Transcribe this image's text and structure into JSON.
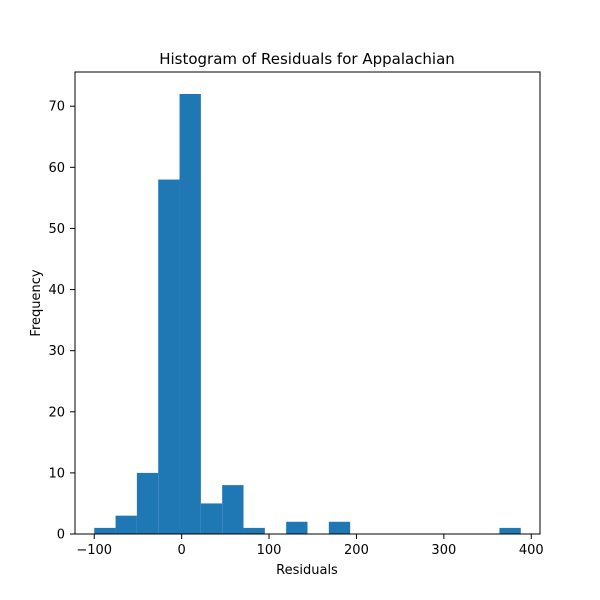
{
  "chart_data": {
    "type": "bar",
    "title": "Histogram of Residuals for Appalachian",
    "xlabel": "Residuals",
    "ylabel": "Frequency",
    "xlim": [
      -122,
      410
    ],
    "ylim": [
      0,
      75.6
    ],
    "x_ticks": [
      -100,
      0,
      100,
      200,
      300,
      400
    ],
    "y_ticks": [
      0,
      10,
      20,
      30,
      40,
      50,
      60,
      70
    ],
    "bin_edges": [
      -100,
      -75.6,
      -51.2,
      -26.8,
      -2.4,
      22.0,
      46.4,
      70.8,
      95.2,
      119.6,
      144.0,
      168.4,
      192.8,
      217.2,
      241.6,
      266.0,
      290.4,
      314.8,
      339.2,
      363.6,
      388.0
    ],
    "counts": [
      1,
      3,
      10,
      58,
      72,
      5,
      8,
      1,
      0,
      2,
      0,
      2,
      0,
      0,
      0,
      0,
      0,
      0,
      0,
      1
    ],
    "bar_color": "#1f77b4",
    "grid": false
  }
}
